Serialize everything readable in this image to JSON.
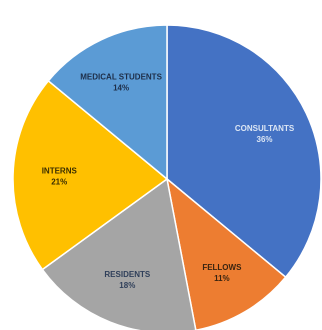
{
  "chart_data": {
    "type": "pie",
    "title": "",
    "start_angle_deg": 0,
    "direction": "clockwise",
    "legend": "none",
    "slices": [
      {
        "label": "CONSULTANTS",
        "value": 36,
        "pct_label": "36%",
        "color": "#4472C4",
        "label_color": "#DCE6F4"
      },
      {
        "label": "FELLOWS",
        "value": 11,
        "pct_label": "11%",
        "color": "#ED7D31",
        "label_color": "#3A2410"
      },
      {
        "label": "RESIDENTS",
        "value": 18,
        "pct_label": "18%",
        "color": "#A5A5A5",
        "label_color": "#2F3F5A"
      },
      {
        "label": "INTERNS",
        "value": 21,
        "pct_label": "21%",
        "color": "#FFC000",
        "label_color": "#3B2E00"
      },
      {
        "label": "MEDICAL STUDENTS",
        "value": 14,
        "pct_label": "14%",
        "color": "#5B9BD5",
        "label_color": "#1E2E48"
      }
    ]
  }
}
